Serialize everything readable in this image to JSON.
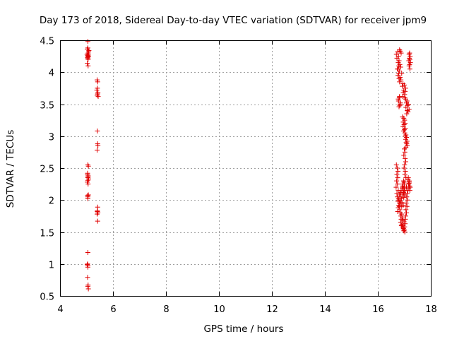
{
  "chart_data": {
    "type": "scatter",
    "title": "Day 173 of 2018, Sidereal Day-to-day VTEC variation (SDTVAR) for receiver jpm9",
    "xlabel": "GPS time / hours",
    "ylabel": "SDTVAR / TECUs",
    "xlim": [
      4,
      18
    ],
    "ylim": [
      0.5,
      4.5
    ],
    "xticks": [
      4,
      6,
      8,
      10,
      12,
      14,
      16,
      18
    ],
    "xtick_labels": [
      "4",
      "6",
      "8",
      "10",
      "12",
      "14",
      "16",
      "18"
    ],
    "yticks": [
      0.5,
      1,
      1.5,
      2,
      2.5,
      3,
      3.5,
      4,
      4.5
    ],
    "ytick_labels": [
      "0.5",
      "1",
      "1.5",
      "2",
      "2.5",
      "3",
      "3.5",
      "4",
      "4.5"
    ],
    "grid": true,
    "marker": "+",
    "color": "#e00000",
    "series": [
      {
        "name": "SDTVAR",
        "x": [
          5.05,
          5.03,
          5.06,
          5.04,
          5.07,
          5.05,
          5.02,
          5.08,
          5.06,
          5.05,
          5.09,
          5.07,
          5.06,
          5.04,
          5.03,
          5.06,
          5.05,
          5.07,
          5.04,
          5.06,
          5.05,
          5.08,
          5.05,
          5.03,
          5.06,
          5.04,
          5.05,
          5.07,
          5.05,
          5.04,
          5.03,
          5.05,
          5.04,
          5.06,
          5.05,
          5.07,
          5.04,
          5.06,
          5.05,
          5.05,
          5.4,
          5.42,
          5.41,
          5.39,
          5.43,
          5.42,
          5.4,
          5.44,
          5.41,
          5.42,
          5.43,
          5.4,
          5.42,
          5.41,
          5.43,
          5.4,
          5.42,
          5.41,
          16.75,
          16.82,
          16.7,
          16.88,
          16.78,
          16.85,
          16.72,
          16.8,
          16.77,
          16.83,
          16.79,
          16.86,
          16.74,
          16.81,
          16.9,
          16.76,
          16.84,
          16.8,
          16.87,
          16.82,
          16.95,
          17.0,
          16.92,
          17.05,
          16.98,
          17.03,
          16.96,
          17.01,
          16.94,
          17.02,
          17.05,
          17.1,
          17.08,
          17.15,
          17.12,
          17.06,
          17.18,
          17.11,
          17.14,
          17.09,
          17.2,
          17.18,
          17.22,
          17.19,
          17.21,
          17.17,
          17.23,
          17.2,
          17.18,
          17.21,
          16.93,
          16.98,
          17.01,
          16.96,
          17.03,
          16.99,
          16.95,
          17.04,
          17.0,
          16.97,
          17.02,
          17.06,
          17.04,
          17.08,
          17.05,
          17.1,
          17.07,
          17.09,
          17.11,
          17.06,
          17.0,
          17.02,
          16.98,
          17.03,
          17.05,
          17.01,
          16.99,
          17.04,
          17.02,
          17.06,
          16.97,
          16.99,
          17.01,
          16.95,
          17.0,
          16.98,
          17.02,
          16.96,
          17.03,
          16.99,
          16.74,
          16.78,
          16.8,
          16.76,
          16.82,
          16.79,
          16.81,
          16.77,
          16.83,
          16.75,
          16.7,
          16.73,
          16.76,
          16.72,
          16.75,
          16.71,
          16.74,
          16.69,
          16.77,
          16.72,
          16.85,
          16.9,
          16.87,
          16.92,
          16.88,
          16.94,
          16.86,
          16.91,
          16.89,
          16.93,
          16.96,
          17.0,
          16.98,
          17.02,
          16.97,
          17.01,
          16.95,
          17.03,
          16.99,
          17.04,
          17.05,
          17.08,
          17.06,
          17.1,
          17.07,
          17.12,
          17.09,
          17.11,
          17.13,
          17.08,
          17.15,
          17.18,
          17.16,
          17.2,
          17.17,
          17.21,
          17.19,
          17.14,
          17.22,
          17.18,
          16.8,
          16.85,
          16.83,
          16.88,
          16.86,
          16.9,
          16.82,
          16.87,
          16.84,
          16.89,
          16.92,
          16.95,
          16.93,
          16.97,
          16.94,
          16.98,
          16.91,
          16.96,
          16.99,
          16.93,
          16.76,
          16.79,
          16.81,
          16.78,
          16.84,
          16.8,
          16.82,
          16.77,
          16.85,
          16.83
        ],
        "y": [
          4.48,
          4.36,
          4.3,
          4.26,
          4.24,
          4.22,
          4.28,
          4.32,
          4.2,
          4.38,
          4.34,
          4.27,
          4.25,
          4.23,
          4.14,
          4.1,
          2.55,
          2.53,
          2.42,
          2.38,
          2.35,
          2.33,
          2.31,
          2.28,
          2.25,
          2.07,
          2.05,
          2.08,
          1.18,
          1.0,
          0.99,
          0.98,
          0.79,
          0.67,
          0.65,
          0.61,
          2.4,
          2.36,
          2.02,
          0.95,
          3.88,
          3.85,
          3.75,
          3.72,
          3.68,
          3.66,
          3.64,
          3.62,
          3.08,
          2.88,
          2.85,
          2.78,
          1.89,
          1.82,
          1.8,
          1.78,
          1.67,
          1.83,
          4.32,
          4.35,
          4.28,
          4.3,
          4.25,
          4.33,
          4.22,
          4.18,
          4.15,
          4.12,
          4.1,
          4.08,
          4.05,
          4.02,
          3.98,
          3.95,
          3.92,
          3.9,
          3.88,
          3.85,
          3.82,
          3.8,
          3.78,
          3.75,
          3.72,
          3.7,
          3.68,
          3.65,
          3.62,
          3.6,
          3.58,
          3.55,
          3.52,
          3.5,
          3.48,
          3.45,
          3.42,
          3.4,
          3.38,
          3.35,
          4.3,
          4.28,
          4.25,
          4.22,
          4.2,
          4.18,
          4.15,
          4.12,
          4.1,
          4.05,
          3.3,
          3.28,
          3.25,
          3.22,
          3.2,
          3.18,
          3.15,
          3.12,
          3.1,
          3.08,
          3.05,
          3.02,
          3.0,
          2.98,
          2.95,
          2.92,
          2.9,
          2.88,
          2.85,
          2.82,
          2.8,
          2.75,
          2.7,
          2.65,
          2.6,
          2.55,
          2.5,
          2.45,
          2.4,
          2.35,
          2.3,
          2.28,
          2.25,
          2.22,
          2.2,
          2.18,
          2.15,
          2.12,
          2.1,
          2.08,
          2.05,
          2.02,
          2.0,
          1.98,
          1.95,
          1.92,
          1.9,
          1.88,
          1.85,
          1.82,
          2.55,
          2.5,
          2.45,
          2.4,
          2.35,
          2.3,
          2.25,
          2.2,
          2.15,
          2.1,
          1.8,
          1.78,
          1.75,
          1.72,
          1.7,
          1.68,
          1.65,
          1.62,
          1.6,
          1.58,
          1.55,
          1.53,
          1.52,
          1.5,
          1.56,
          1.58,
          1.6,
          1.63,
          1.66,
          1.7,
          1.75,
          1.8,
          1.85,
          1.9,
          1.95,
          2.0,
          2.05,
          2.1,
          2.15,
          2.2,
          2.35,
          2.3,
          2.25,
          2.22,
          2.18,
          2.15,
          2.28,
          2.32,
          2.2,
          2.26,
          2.0,
          2.05,
          2.1,
          2.15,
          1.95,
          1.9,
          2.08,
          2.12,
          1.98,
          2.02,
          2.18,
          2.22,
          2.25,
          2.12,
          2.08,
          2.04,
          1.96,
          1.92,
          2.15,
          2.2,
          4.05,
          3.98,
          3.6,
          3.55,
          3.5,
          3.46,
          3.62,
          3.58,
          3.52,
          3.48
        ]
      }
    ]
  }
}
